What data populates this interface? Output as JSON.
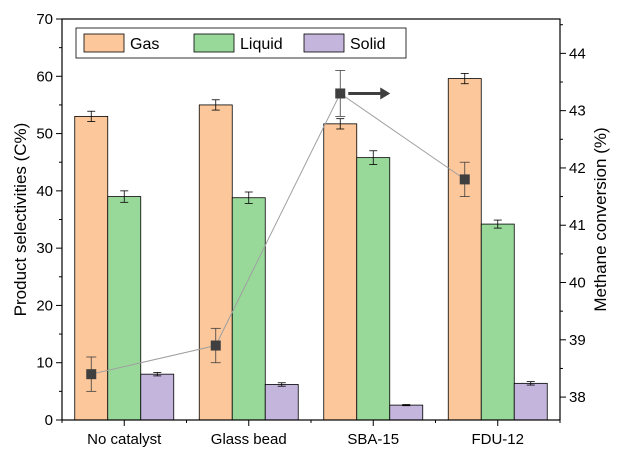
{
  "chart_data": {
    "type": "bar",
    "categories": [
      "No catalyst",
      "Glass bead",
      "SBA-15",
      "FDU-12"
    ],
    "series": [
      {
        "name": "Gas",
        "color": "#fcc79a",
        "values": [
          53.0,
          55.0,
          51.7,
          59.6
        ],
        "errors": [
          0.9,
          0.9,
          0.9,
          0.9
        ]
      },
      {
        "name": "Liquid",
        "color": "#98d99a",
        "values": [
          39.0,
          38.8,
          45.8,
          34.2
        ],
        "errors": [
          1.0,
          1.0,
          1.2,
          0.7
        ]
      },
      {
        "name": "Solid",
        "color": "#c3b5dc",
        "values": [
          8.0,
          6.2,
          2.6,
          6.4
        ],
        "errors": [
          0.3,
          0.3,
          0.1,
          0.3
        ]
      }
    ],
    "line_series": {
      "axis": "right",
      "color": "#3f3f3f",
      "values": [
        38.4,
        38.9,
        43.3,
        41.8
      ],
      "errors": [
        0.3,
        0.3,
        0.4,
        0.3
      ]
    },
    "ylabel": "Product selectivities (C%)",
    "ylabel_right": "Methane conversion (%)",
    "ylim": [
      0,
      70
    ],
    "yticks": [
      "0",
      "10",
      "20",
      "30",
      "40",
      "50",
      "60",
      "70"
    ],
    "y2lim": [
      37.6,
      44.6
    ],
    "y2ticks": [
      "38",
      "39",
      "40",
      "41",
      "42",
      "43",
      "44"
    ],
    "arrow_direction": "right",
    "legend_position": "top"
  }
}
